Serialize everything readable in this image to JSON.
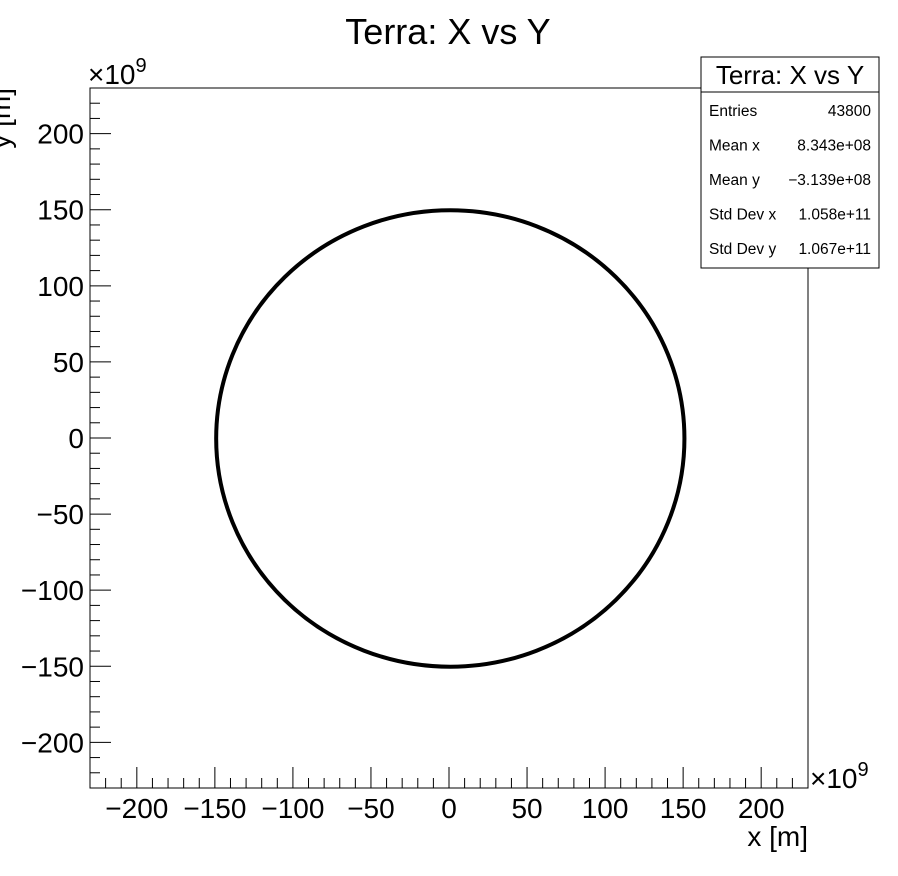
{
  "chart_data": {
    "type": "scatter",
    "title": "Terra: X vs Y",
    "xlabel": "x [m]",
    "ylabel": "y [m]",
    "exponent_base": "×10",
    "exponent_power": "9",
    "xlim": [
      -230,
      230
    ],
    "ylim": [
      -230,
      230
    ],
    "unit_scale": 1000000000,
    "xticks": [
      -200,
      -150,
      -100,
      -50,
      0,
      50,
      100,
      150,
      200
    ],
    "yticks": [
      -200,
      -150,
      -100,
      -50,
      0,
      50,
      100,
      150,
      200
    ],
    "xtick_labels": [
      "−200",
      "−150",
      "−100",
      "−50",
      "0",
      "50",
      "100",
      "150",
      "200"
    ],
    "ytick_labels": [
      "−200",
      "−150",
      "−100",
      "−50",
      "0",
      "50",
      "100",
      "150",
      "200"
    ],
    "minor_tick_step": 10,
    "grid": false,
    "series": [
      {
        "shape": "circle orbit",
        "center": [
          0.8343,
          -0.3139
        ],
        "radius": 150,
        "color": "#000000"
      }
    ],
    "stats_box": {
      "title": "Terra: X vs Y",
      "placement": "top-right",
      "rows": [
        {
          "label": "Entries",
          "value": "43800"
        },
        {
          "label": "Mean x",
          "value": "8.343e+08"
        },
        {
          "label": "Mean y",
          "value": "−3.139e+08"
        },
        {
          "label": "Std Dev x",
          "value": "1.058e+11"
        },
        {
          "label": "Std Dev y",
          "value": "1.067e+11"
        }
      ]
    }
  }
}
